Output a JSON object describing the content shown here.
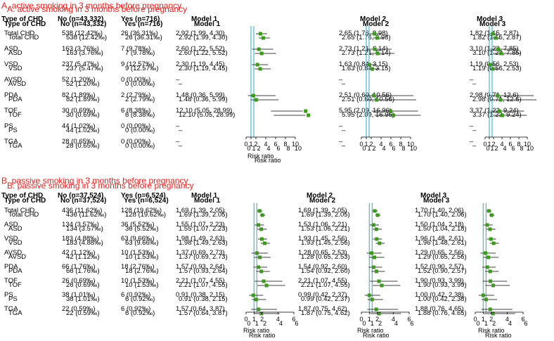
{
  "panels": [
    {
      "title": "A. active smoking in 3 months before pregnancy",
      "headers": [
        "Type of CHD",
        "No (n=43,332)",
        "Yes (n=716)"
      ],
      "model_titles": [
        "Model 1",
        "Model 2",
        "Model 3"
      ],
      "axis_title": "Risk ratio",
      "ticks": [
        "0",
        "1",
        "2",
        "4",
        "6",
        "8",
        "10"
      ],
      "rows": [
        {
          "type": "Total CHD",
          "no": "538 (12.42‰)",
          "yes": "26 (36.31‰)",
          "m": [
            "2.92 (1.99, 4.30)",
            "2.65 (1.76, 3.98)",
            "1.82 (1.15, 2.87)"
          ]
        },
        {
          "type": "ASD",
          "no": "163 (3.76‰)",
          "yes": "7 (9.78‰)",
          "m": [
            "2.60 (1.22, 5.52)",
            "2.73 (1.21, 6.14)",
            "3.10 (1.22, 7.85)"
          ]
        },
        {
          "type": "VSD",
          "no": "237 (5.47‰)",
          "yes": "9 (12.57‰)",
          "m": [
            "2.30 (1.19, 4.45)",
            "1.63 (0.84, 3.15)",
            "1.19 (0.56, 2.53)"
          ]
        },
        {
          "type": "AVSD",
          "no": "52 (1.20‰)",
          "yes": "0 (0.00‰)",
          "m": [
            "–",
            "–",
            "–"
          ]
        },
        {
          "type": "PDA",
          "no": "82 (1.89‰)",
          "yes": "2 (2.79‰)",
          "m": [
            "1.48 (0.36, 5.99)",
            "2.51 (0.60, 10.56)",
            "2.98 (0.71, 12.6)"
          ]
        },
        {
          "type": "TOF",
          "no": "30 (0.69‰)",
          "yes": "6 (8.38‰)",
          "m": [
            "12.10 (5.05, 28.99)",
            "5.95 (2.09, 16.96)",
            "3.37 (1.23, 9.24)"
          ]
        },
        {
          "type": "PS",
          "no": "44 (1.02‰)",
          "yes": "0 (0.00‰)",
          "m": [
            "–",
            "–",
            "–"
          ]
        },
        {
          "type": "TGA",
          "no": "28 (0.65‰)",
          "yes": "0 (0.00‰)",
          "m": [
            "–",
            "–",
            "–"
          ]
        }
      ]
    },
    {
      "title": "B. passive smoking in 3 months before pregnancy",
      "headers": [
        "Type of CHD",
        "No (n=37,524)",
        "Yes (n=6,524)"
      ],
      "model_titles": [
        "Model 1",
        "Model 2",
        "Model 3"
      ],
      "axis_title": "Risk ratio",
      "ticks": [
        "0",
        "1",
        "2",
        "4",
        "6"
      ],
      "rows": [
        {
          "type": "Total CHD",
          "no": "436 (11.62‰)",
          "yes": "128 (19.62‰)",
          "m": [
            "1.69 (1.39, 2.05)",
            "1.69 (1.39, 2.05)",
            "1.70 (1.40, 2.06)"
          ]
        },
        {
          "type": "ASD",
          "no": "134 (3.57‰)",
          "yes": "36 (5.52‰)",
          "m": [
            "1.55 (1.07, 2.23)",
            "1.53 (1.06, 2.21)",
            "1.50 (1.04, 2.18)"
          ]
        },
        {
          "type": "VSD",
          "no": "183 (4.88‰)",
          "yes": "63 (9.66‰)",
          "m": [
            "1.98 (1.49, 2.63)",
            "1.93 (1.45, 2.56)",
            "1.96 (1.48, 2.61)"
          ]
        },
        {
          "type": "AVSD",
          "no": "42 (1.12‰)",
          "yes": "10 (1.53‰)",
          "m": [
            "1.37 (0.69, 2.73)",
            "1.28 (0.65, 2.53)",
            "1.29 (0.65, 2.56)"
          ]
        },
        {
          "type": "PDA",
          "no": "66 (1.76‰)",
          "yes": "18 (2.76‰)",
          "m": [
            "1.57 (0.93, 2.64)",
            "1.54 (0.92, 2.60)",
            "1.52 (0.90, 2.57)"
          ]
        },
        {
          "type": "TOF",
          "no": "26 (0.69‰)",
          "yes": "10 (1.53‰)",
          "m": [
            "2.21 (1.07, 4.55)",
            "2.21 (1.07, 4.55)",
            "1.90 (0.93, 3.99)"
          ]
        },
        {
          "type": "PS",
          "no": "38 (1.01‰)",
          "yes": "6 (0.92‰)",
          "m": [
            "0.91 (0.38, 2.15)",
            "0.99 (0.42, 2.37)",
            "1.00 (0.42, 2.38)"
          ]
        },
        {
          "type": "TGA",
          "no": "22 (0.59‰)",
          "yes": "6 (0.92‰)",
          "m": [
            "1.57 (0.64, 3.87)",
            "1.87 (0.75, 4.62)",
            "1.88 (0.76, 4.65)"
          ]
        }
      ]
    }
  ],
  "chart_data": [
    {
      "type": "forest",
      "title": "A. active smoking in 3 months before pregnancy",
      "xlabel": "Risk ratio",
      "xlim": [
        0,
        10
      ],
      "reference_line": 1,
      "categories": [
        "Total CHD",
        "ASD",
        "VSD",
        "AVSD",
        "PDA",
        "TOF",
        "PS",
        "TGA"
      ],
      "series": [
        {
          "name": "Model 1",
          "est": [
            2.92,
            2.6,
            2.3,
            null,
            1.48,
            12.1,
            null,
            null
          ],
          "lo": [
            1.99,
            1.22,
            1.19,
            null,
            0.36,
            5.05,
            null,
            null
          ],
          "hi": [
            4.3,
            5.52,
            4.45,
            null,
            5.99,
            28.99,
            null,
            null
          ]
        },
        {
          "name": "Model 2",
          "est": [
            2.65,
            2.73,
            1.63,
            null,
            2.51,
            5.95,
            null,
            null
          ],
          "lo": [
            1.76,
            1.21,
            0.84,
            null,
            0.6,
            2.09,
            null,
            null
          ],
          "hi": [
            3.98,
            6.14,
            3.15,
            null,
            10.56,
            16.96,
            null,
            null
          ]
        },
        {
          "name": "Model 3",
          "est": [
            1.82,
            3.1,
            1.19,
            null,
            2.98,
            3.37,
            null,
            null
          ],
          "lo": [
            1.15,
            1.22,
            0.56,
            null,
            0.71,
            1.23,
            null,
            null
          ],
          "hi": [
            2.87,
            7.85,
            2.53,
            null,
            12.6,
            9.24,
            null,
            null
          ]
        }
      ]
    },
    {
      "type": "forest",
      "title": "B. passive smoking in 3 months before pregnancy",
      "xlabel": "Risk ratio",
      "xlim": [
        0,
        6
      ],
      "reference_line": 1,
      "categories": [
        "Total CHD",
        "ASD",
        "VSD",
        "AVSD",
        "PDA",
        "TOF",
        "PS",
        "TGA"
      ],
      "series": [
        {
          "name": "Model 1",
          "est": [
            1.69,
            1.55,
            1.98,
            1.37,
            1.57,
            2.21,
            0.91,
            1.57
          ],
          "lo": [
            1.39,
            1.07,
            1.49,
            0.69,
            0.93,
            1.07,
            0.38,
            0.64
          ],
          "hi": [
            2.05,
            2.23,
            2.63,
            2.73,
            2.64,
            4.55,
            2.15,
            3.87
          ]
        },
        {
          "name": "Model 2",
          "est": [
            1.69,
            1.53,
            1.93,
            1.28,
            1.54,
            2.21,
            0.99,
            1.87
          ],
          "lo": [
            1.39,
            1.06,
            1.45,
            0.65,
            0.92,
            1.07,
            0.42,
            0.75
          ],
          "hi": [
            2.05,
            2.21,
            2.56,
            2.53,
            2.6,
            4.55,
            2.37,
            4.62
          ]
        },
        {
          "name": "Model 3",
          "est": [
            1.7,
            1.5,
            1.96,
            1.29,
            1.52,
            1.9,
            1.0,
            1.88
          ],
          "lo": [
            1.4,
            1.04,
            1.48,
            0.65,
            0.9,
            0.93,
            0.42,
            0.76
          ],
          "hi": [
            2.06,
            2.18,
            2.61,
            2.56,
            2.57,
            3.99,
            2.38,
            4.65
          ]
        }
      ]
    }
  ],
  "colors": {
    "title": "#e8221c",
    "marker": "#3a9a1a",
    "reference_line": "#4fb7c7",
    "line": "#000000"
  }
}
